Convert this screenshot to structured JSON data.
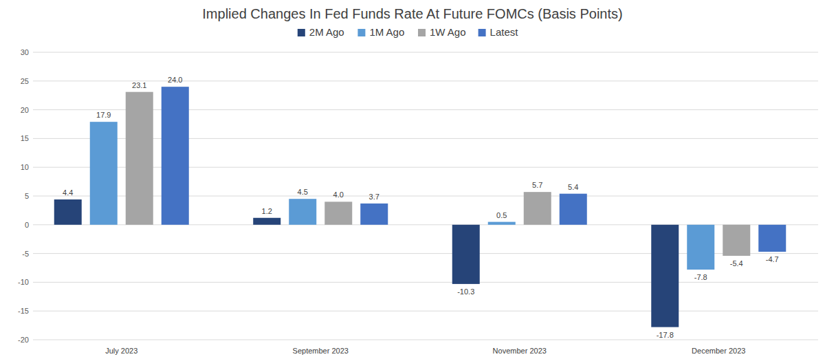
{
  "chart_data": {
    "type": "bar",
    "title": "Implied Changes In Fed Funds Rate At Future FOMCs (Basis Points)",
    "categories": [
      "July 2023",
      "September 2023",
      "November 2023",
      "December 2023"
    ],
    "series": [
      {
        "name": "2M Ago",
        "color": "#264478",
        "values": [
          4.4,
          1.2,
          -10.3,
          -17.8
        ]
      },
      {
        "name": "1M Ago",
        "color": "#5b9bd5",
        "values": [
          17.9,
          4.5,
          0.5,
          -7.8
        ]
      },
      {
        "name": "1W Ago",
        "color": "#a5a5a5",
        "values": [
          23.1,
          4.0,
          5.7,
          -5.4
        ],
        "value_labels": [
          "23.1",
          "4.0",
          "5.7",
          "-5.4"
        ]
      },
      {
        "name": "Latest",
        "color": "#4472c4",
        "values": [
          24.0,
          3.7,
          5.4,
          -4.7
        ],
        "value_labels": [
          "24.0",
          "3.7",
          "5.4",
          "-4.7"
        ]
      }
    ],
    "ylim": [
      -20,
      30
    ],
    "yticks": [
      -20,
      -15,
      -10,
      -5,
      0,
      5,
      10,
      15,
      20,
      25,
      30
    ],
    "grid": true,
    "legend": "top",
    "data_labels": true
  }
}
